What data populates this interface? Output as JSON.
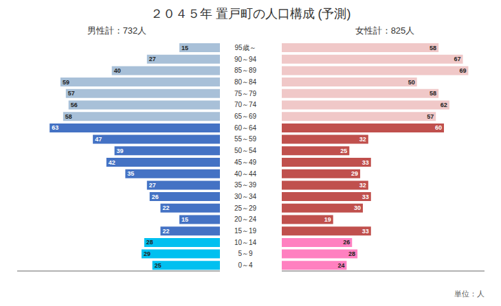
{
  "chart_data": {
    "type": "bar",
    "orientation": "horizontal",
    "title": "２０４５年 置戸町の人口構成 (予測)",
    "categories": [
      "0～4",
      "5～9",
      "10～14",
      "15～19",
      "20～24",
      "25～29",
      "30～34",
      "35～39",
      "40～44",
      "45～49",
      "50～54",
      "55～59",
      "60～64",
      "65～69",
      "70～74",
      "75～79",
      "80～84",
      "85～89",
      "90～94",
      "95歳～"
    ],
    "series": [
      {
        "values": [
          25,
          29,
          28,
          22,
          15,
          22,
          26,
          27,
          35,
          42,
          39,
          47,
          63,
          58,
          56,
          57,
          59,
          40,
          27,
          15
        ],
        "colors": [
          "#00c0f0",
          "#00c0f0",
          "#00c0f0",
          "#4472c4",
          "#4472c4",
          "#4472c4",
          "#4472c4",
          "#4472c4",
          "#4472c4",
          "#4472c4",
          "#4472c4",
          "#4472c4",
          "#4472c4",
          "#a8c0d8",
          "#a8c0d8",
          "#a8c0d8",
          "#a8c0d8",
          "#a8c0d8",
          "#a8c0d8",
          "#a8c0d8"
        ]
      },
      {
        "values": [
          24,
          28,
          26,
          33,
          19,
          30,
          33,
          32,
          29,
          33,
          25,
          32,
          60,
          57,
          62,
          58,
          50,
          69,
          67,
          58
        ],
        "colors": [
          "#ff80c0",
          "#ff80c0",
          "#ff80c0",
          "#c0504d",
          "#c0504d",
          "#c0504d",
          "#c0504d",
          "#c0504d",
          "#c0504d",
          "#c0504d",
          "#c0504d",
          "#c0504d",
          "#c0504d",
          "#f0c8c8",
          "#f0c8c8",
          "#f0c8c8",
          "#f0c8c8",
          "#f0c8c8",
          "#f0c8c8",
          "#f0c8c8"
        ]
      }
    ],
    "xlim": [
      0,
      75
    ],
    "data_labels": true,
    "tick_labels": "y",
    "grid": false,
    "annotations": [
      "男性計：732人",
      "女性計：825人",
      "単位：人"
    ]
  }
}
